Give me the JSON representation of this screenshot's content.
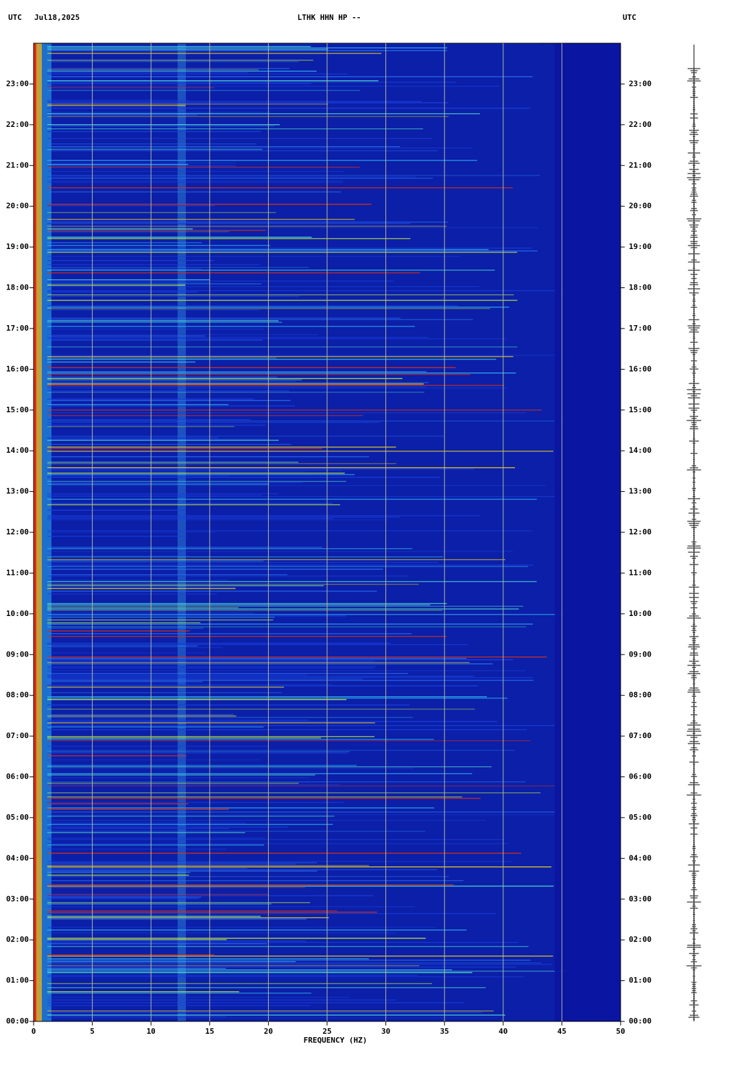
{
  "chart_data": {
    "type": "spectrogram",
    "title": "LTHK HHN HP --",
    "time_zone_left": "UTC",
    "date": "Jul18,2025",
    "time_zone_right": "UTC",
    "x_label": "FREQUENCY (HZ)",
    "xlim": [
      0,
      50
    ],
    "xticks": [
      0,
      5,
      10,
      15,
      20,
      25,
      30,
      35,
      40,
      45,
      50
    ],
    "ylim": [
      0,
      24
    ],
    "yticks": [
      {
        "value": 0,
        "label": "00:00"
      },
      {
        "value": 1,
        "label": "01:00"
      },
      {
        "value": 2,
        "label": "02:00"
      },
      {
        "value": 3,
        "label": "03:00"
      },
      {
        "value": 4,
        "label": "04:00"
      },
      {
        "value": 5,
        "label": "05:00"
      },
      {
        "value": 6,
        "label": "06:00"
      },
      {
        "value": 7,
        "label": "07:00"
      },
      {
        "value": 8,
        "label": "08:00"
      },
      {
        "value": 9,
        "label": "09:00"
      },
      {
        "value": 10,
        "label": "10:00"
      },
      {
        "value": 11,
        "label": "11:00"
      },
      {
        "value": 12,
        "label": "12:00"
      },
      {
        "value": 13,
        "label": "13:00"
      },
      {
        "value": 14,
        "label": "14:00"
      },
      {
        "value": 15,
        "label": "15:00"
      },
      {
        "value": 16,
        "label": "16:00"
      },
      {
        "value": 17,
        "label": "17:00"
      },
      {
        "value": 18,
        "label": "18:00"
      },
      {
        "value": 19,
        "label": "19:00"
      },
      {
        "value": 20,
        "label": "20:00"
      },
      {
        "value": 21,
        "label": "21:00"
      },
      {
        "value": 22,
        "label": "22:00"
      },
      {
        "value": 23,
        "label": "23:00"
      }
    ],
    "grid": true
  }
}
